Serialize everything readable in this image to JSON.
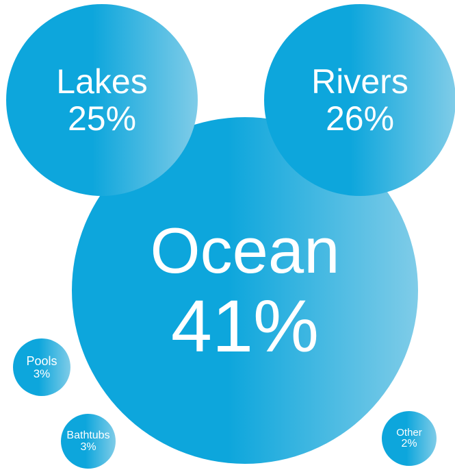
{
  "colors": {
    "bubble_start": "#0da6dc",
    "bubble_end": "#7fcce8",
    "text": "#ffffff",
    "background": "#ffffff"
  },
  "chart_data": {
    "type": "bubble",
    "title": "",
    "series": [
      {
        "label": "Ocean",
        "value": 41,
        "display": "41%"
      },
      {
        "label": "Rivers",
        "value": 26,
        "display": "26%"
      },
      {
        "label": "Lakes",
        "value": 25,
        "display": "25%"
      },
      {
        "label": "Pools",
        "value": 3,
        "display": "3%"
      },
      {
        "label": "Bathtubs",
        "value": 3,
        "display": "3%"
      },
      {
        "label": "Other",
        "value": 2,
        "display": "2%"
      }
    ]
  }
}
